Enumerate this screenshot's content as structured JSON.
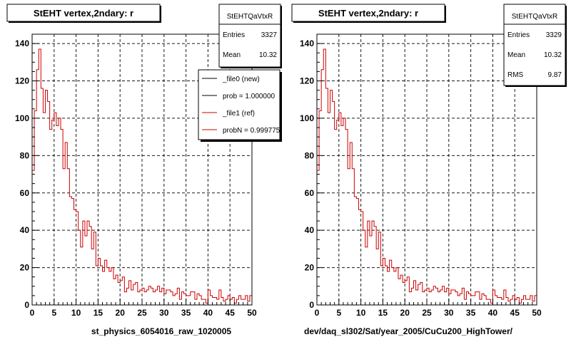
{
  "page": {
    "footer_left": "st_physics_6054016_raw_1020005",
    "footer_right": "dev/daq_sl302/Sat/year_2005/CuCu200_HighTower/"
  },
  "colors": {
    "new_line": "#000000",
    "ref_line": "#cc0000",
    "grid": "#000000",
    "frame": "#000000",
    "background": "#ffffff"
  },
  "chart_data": [
    {
      "type": "histogram-step",
      "title": "StEHT  vertex,2ndary: r",
      "xlim": [
        0,
        50
      ],
      "ylim": [
        0,
        145
      ],
      "xticks": [
        0,
        5,
        10,
        15,
        20,
        25,
        30,
        35,
        40,
        45,
        50
      ],
      "yticks": [
        0,
        20,
        40,
        60,
        80,
        100,
        120,
        140
      ],
      "bin_width": 0.5,
      "grid": true,
      "stats": {
        "name": "StEHTQaVtxR",
        "rows": [
          {
            "label": "Entries",
            "value": "3327"
          },
          {
            "label": "Mean",
            "value": "10.32"
          }
        ]
      },
      "legend": {
        "placement": "top-right",
        "entries": [
          {
            "label": "_file0 (new)",
            "color": "#000000"
          },
          {
            "label": "prob = 1.000000",
            "color": "#000000"
          },
          {
            "label": "_file1 (ref)",
            "color": "#cc0000"
          },
          {
            "label": "probN = 0.999775",
            "color": "#cc0000"
          }
        ]
      },
      "series": [
        {
          "color": "#cc0000",
          "values": [
            72,
            104,
            126,
            137,
            116,
            103,
            115,
            109,
            94,
            99,
            103,
            96,
            100,
            94,
            73,
            87,
            73,
            58,
            57,
            51,
            50,
            40,
            31,
            45,
            37,
            45,
            42,
            30,
            39,
            21,
            25,
            21,
            18,
            24,
            20,
            18,
            20,
            14,
            16,
            12,
            13,
            15,
            7,
            9,
            13,
            8,
            11,
            12,
            7,
            8,
            9,
            7,
            8,
            10,
            9,
            7,
            8,
            10,
            7,
            9,
            6,
            8,
            8,
            7,
            5,
            6,
            9,
            3,
            7,
            6,
            5,
            5,
            7,
            7,
            3,
            6,
            5,
            3,
            3,
            1,
            8,
            5,
            4,
            4,
            3,
            8,
            4,
            2,
            3,
            5,
            3,
            4,
            1,
            3,
            5,
            3,
            3,
            5,
            2,
            5
          ]
        }
      ]
    },
    {
      "type": "histogram-step",
      "title": "StEHT  vertex,2ndary: r",
      "xlim": [
        0,
        50
      ],
      "ylim": [
        0,
        145
      ],
      "xticks": [
        0,
        5,
        10,
        15,
        20,
        25,
        30,
        35,
        40,
        45,
        50
      ],
      "yticks": [
        0,
        20,
        40,
        60,
        80,
        100,
        120,
        140
      ],
      "bin_width": 0.5,
      "grid": true,
      "stats": {
        "name": "StEHTQaVtxR",
        "rows": [
          {
            "label": "Entries",
            "value": "3329"
          },
          {
            "label": "Mean",
            "value": "10.32"
          },
          {
            "label": "RMS",
            "value": "9.87"
          }
        ]
      },
      "legend": null,
      "series": [
        {
          "color": "#cc0000",
          "values": [
            72,
            104,
            126,
            137,
            116,
            103,
            115,
            109,
            94,
            99,
            103,
            96,
            100,
            94,
            73,
            87,
            73,
            58,
            57,
            51,
            50,
            40,
            31,
            45,
            37,
            45,
            42,
            30,
            39,
            21,
            25,
            21,
            18,
            24,
            20,
            18,
            20,
            14,
            16,
            12,
            13,
            15,
            7,
            9,
            13,
            8,
            11,
            12,
            7,
            8,
            9,
            7,
            8,
            10,
            9,
            7,
            8,
            10,
            7,
            9,
            6,
            8,
            8,
            7,
            5,
            6,
            9,
            3,
            7,
            6,
            5,
            5,
            7,
            7,
            3,
            6,
            5,
            3,
            3,
            1,
            8,
            5,
            4,
            4,
            3,
            8,
            4,
            2,
            3,
            5,
            3,
            4,
            1,
            3,
            5,
            3,
            3,
            5,
            2,
            5
          ]
        }
      ]
    }
  ]
}
